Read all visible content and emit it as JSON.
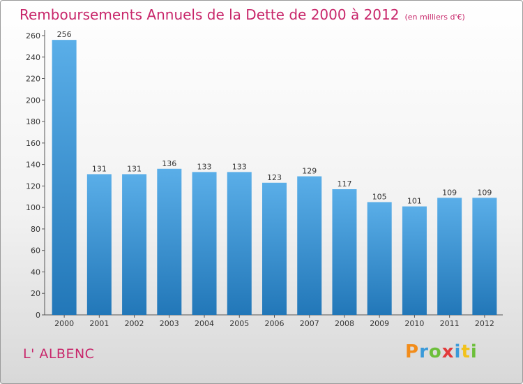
{
  "chart_data": {
    "type": "bar",
    "title": "Remboursements Annuels de la Dette de 2000 à 2012",
    "subtitle": "(en milliers d'€)",
    "categories": [
      "2000",
      "2001",
      "2002",
      "2003",
      "2004",
      "2005",
      "2006",
      "2007",
      "2008",
      "2009",
      "2010",
      "2011",
      "2012"
    ],
    "values": [
      256,
      131,
      131,
      136,
      133,
      133,
      123,
      129,
      117,
      105,
      101,
      109,
      109
    ],
    "ylim": [
      0,
      260
    ],
    "yticks": [
      0,
      20,
      40,
      60,
      80,
      100,
      120,
      140,
      160,
      180,
      200,
      220,
      240,
      260
    ],
    "grid": false,
    "legend": "none",
    "colors": {
      "bar_top": "#5aaee8",
      "bar_bottom": "#2277b8",
      "title": "#c8266a"
    }
  },
  "commune": "L' ALBENC",
  "logo": {
    "letters": [
      "P",
      "r",
      "o",
      "x",
      "i",
      "t",
      "i"
    ],
    "colors": [
      "#f28c1a",
      "#3a9ad9",
      "#6cbf3a",
      "#e23a3a",
      "#3a9ad9",
      "#f2c21a",
      "#6cbf3a"
    ]
  }
}
